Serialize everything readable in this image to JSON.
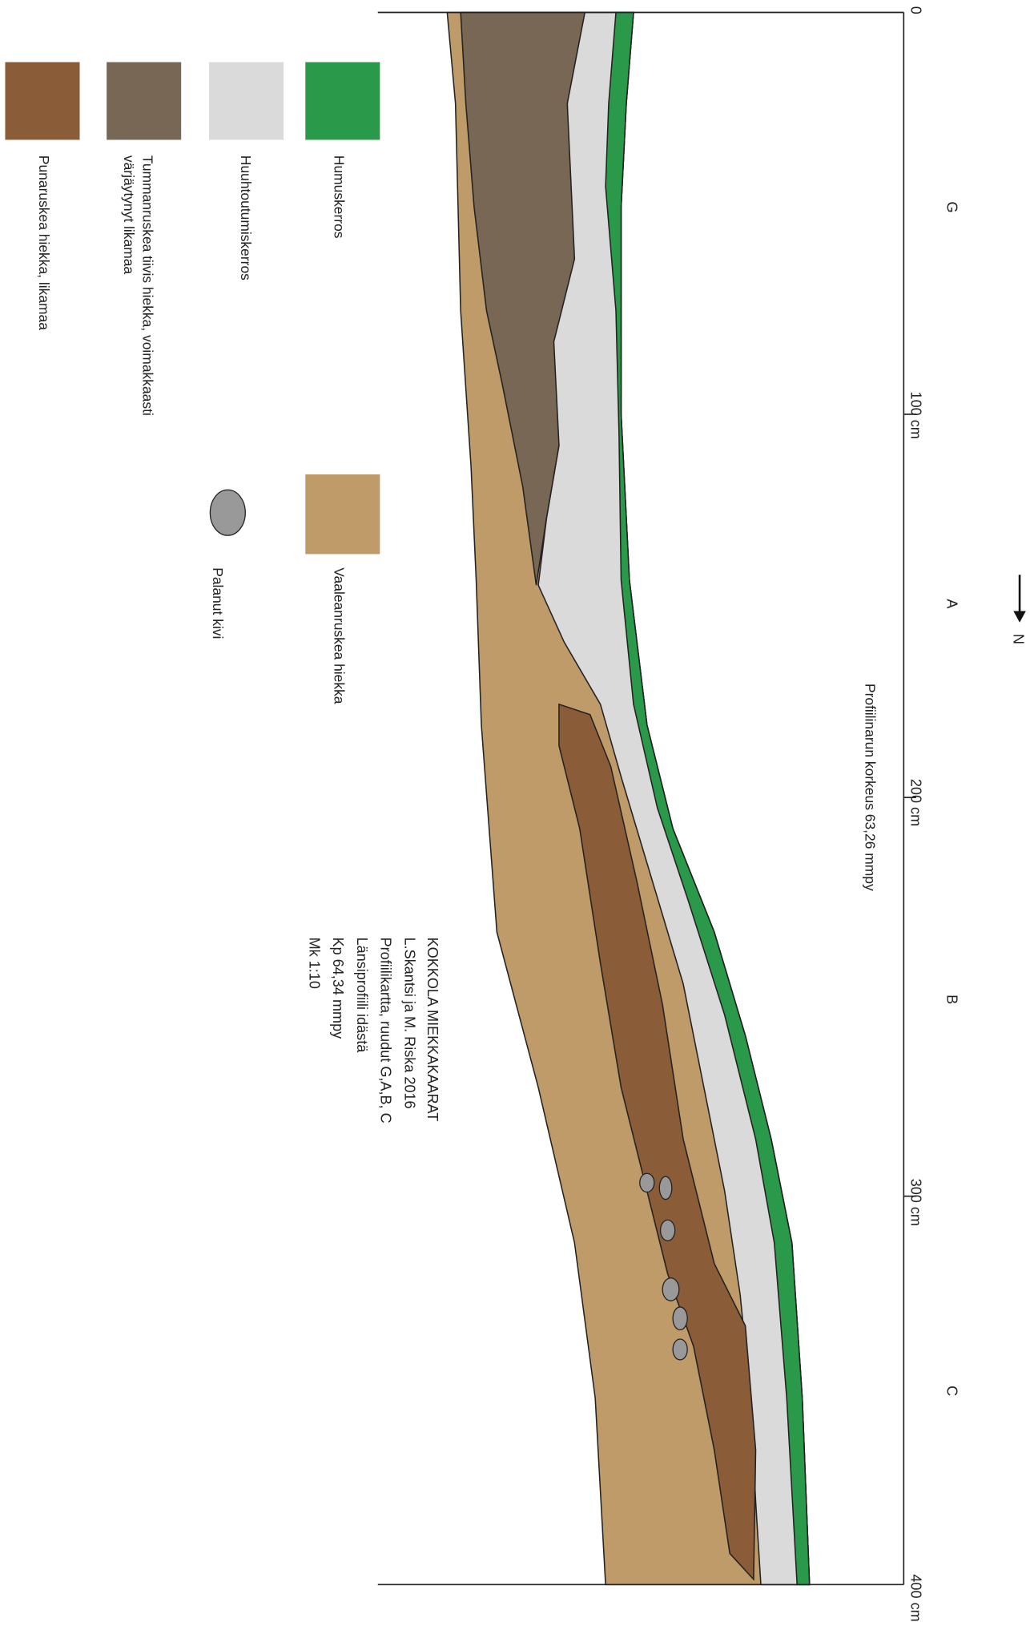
{
  "scale": {
    "ticks": [
      "0",
      "100 cm",
      "200 cm",
      "300 cm",
      "400 cm"
    ]
  },
  "squares": [
    "G",
    "A",
    "B",
    "C"
  ],
  "north": "N",
  "profile_note": "Profiilinarun korkeus 63,26 mmpy",
  "title_block": [
    "KOKKOLA MIEKKAKAARAT",
    "L.Skantsi ja M. Riska 2016",
    "Profiilikartta, ruudut G,A,B, C",
    "Länsiprofiili idästä",
    "Kp 64,34 mmpy",
    "Mk 1:10"
  ],
  "legend": {
    "humus": "Humuskerros",
    "leached": "Huuhtoutumiskerros",
    "dark_brown": [
      "Tummanruskea tiivis hiekka, voimakkaasti",
      "värjäytynyt likamaa"
    ],
    "red_brown": "Punaruskea hiekka, likamaa",
    "light_brown": "Vaaleanruskea hiekka",
    "stone": "Palanut kivi"
  }
}
